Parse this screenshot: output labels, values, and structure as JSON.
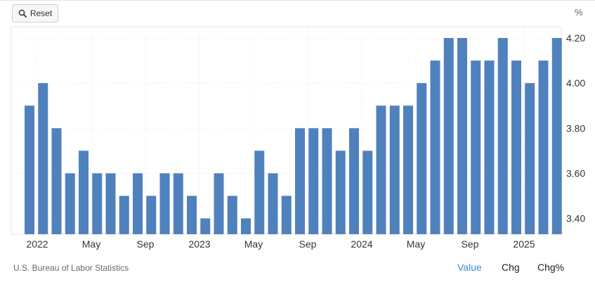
{
  "toolbar": {
    "reset_label": "Reset"
  },
  "unit_label": "%",
  "footer": {
    "source": "U.S. Bureau of Labor Statistics",
    "links": [
      "Value",
      "Chg",
      "Chg%"
    ]
  },
  "colors": {
    "bar": "#4f81bd",
    "link_active": "#3b8ad8",
    "grid": "#e8e8e8"
  },
  "chart_data": {
    "type": "bar",
    "title": "",
    "xlabel": "",
    "ylabel": "%",
    "ylim": [
      3.33,
      4.25
    ],
    "yticks": [
      3.4,
      3.6,
      3.8,
      4.0,
      4.2
    ],
    "ytick_labels": [
      "3.40",
      "3.60",
      "3.80",
      "4.00",
      "4.20"
    ],
    "categories": [
      "2022-01",
      "2022-02",
      "2022-03",
      "2022-04",
      "2022-05",
      "2022-06",
      "2022-07",
      "2022-08",
      "2022-09",
      "2022-10",
      "2022-11",
      "2022-12",
      "2023-01",
      "2023-02",
      "2023-03",
      "2023-04",
      "2023-05",
      "2023-06",
      "2023-07",
      "2023-08",
      "2023-09",
      "2023-10",
      "2023-11",
      "2023-12",
      "2024-01",
      "2024-02",
      "2024-03",
      "2024-04",
      "2024-05",
      "2024-06",
      "2024-07",
      "2024-08",
      "2024-09",
      "2024-10",
      "2024-11",
      "2024-12",
      "2025-01",
      "2025-02",
      "2025-03",
      "2025-04"
    ],
    "values": [
      3.9,
      4.0,
      3.8,
      3.6,
      3.7,
      3.6,
      3.6,
      3.5,
      3.6,
      3.5,
      3.6,
      3.6,
      3.5,
      3.4,
      3.6,
      3.5,
      3.4,
      3.7,
      3.6,
      3.5,
      3.8,
      3.8,
      3.8,
      3.7,
      3.8,
      3.7,
      3.9,
      3.9,
      3.9,
      4.0,
      4.1,
      4.2,
      4.2,
      4.1,
      4.1,
      4.2,
      4.1,
      4.0,
      4.1,
      4.2
    ],
    "x_tick_labels": [
      {
        "index": 0,
        "label": "2022"
      },
      {
        "index": 4,
        "label": "May"
      },
      {
        "index": 8,
        "label": "Sep"
      },
      {
        "index": 12,
        "label": "2023"
      },
      {
        "index": 16,
        "label": "May"
      },
      {
        "index": 20,
        "label": "Sep"
      },
      {
        "index": 24,
        "label": "2024"
      },
      {
        "index": 28,
        "label": "May"
      },
      {
        "index": 32,
        "label": "Sep"
      },
      {
        "index": 36,
        "label": "2025"
      }
    ],
    "grid": true,
    "y_axis_position": "right"
  }
}
